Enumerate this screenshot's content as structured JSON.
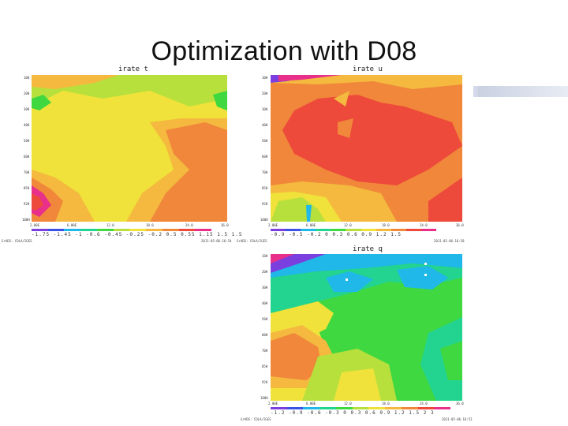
{
  "slide": {
    "title": "Optimization with D08"
  },
  "panels": [
    {
      "id": "t",
      "title": "irate t",
      "y_ticks": [
        "10H",
        "20H",
        "30H",
        "40H",
        "50H",
        "60H",
        "70H",
        "85H",
        "92H",
        "100H"
      ],
      "x_ticks": [
        "2.00E",
        "6.00E",
        "12.0",
        "18.0",
        "24.0",
        "36.0"
      ],
      "colorbar_labels": "-1.75 -1.45 -1 -0.6 -0.45 -0.25 -0.2 0.5 0.55 1.15 1.5 1.5",
      "footer_left": "GrADS: COLA/IGES",
      "footer_right": "2011-05-06-16:54",
      "colors": [
        "#7b3fe0",
        "#3a52e6",
        "#1fb8e8",
        "#22d48f",
        "#40d840",
        "#b8e03c",
        "#f0e23a",
        "#f4b93e",
        "#f0873a",
        "#ee4a3b",
        "#e8308a"
      ]
    },
    {
      "id": "u",
      "title": "irate u",
      "y_ticks": [
        "10H",
        "20H",
        "30H",
        "40H",
        "50H",
        "60H",
        "70H",
        "85H",
        "92H",
        "100H"
      ],
      "x_ticks": [
        "2.00E",
        "6.00E",
        "12.0",
        "18.0",
        "24.0",
        "36.0"
      ],
      "colorbar_labels": "-0.9 -0.5 -0.2 0 0.3 0.6 0.9 1.2 1.5",
      "footer_left": "GrADS: COLA/IGES",
      "footer_right": "2011-05-06-16:58",
      "colors": [
        "#7b3fe0",
        "#3a52e6",
        "#1fb8e8",
        "#22d48f",
        "#40d840",
        "#b8e03c",
        "#f0e23a",
        "#f4b93e",
        "#f0873a",
        "#ee4a3b",
        "#e8308a"
      ]
    },
    {
      "id": "q",
      "title": "irate q",
      "y_ticks": [
        "10H",
        "20H",
        "30H",
        "40H",
        "50H",
        "60H",
        "70H",
        "85H",
        "92H",
        "100H"
      ],
      "x_ticks": [
        "2.00E",
        "6.00E",
        "12.0",
        "18.0",
        "24.0",
        "36.0"
      ],
      "colorbar_labels": "-1.2 -0.9 -0.6 -0.3 0 0.3 0.6 0.9 1.2 1.5 2 3",
      "footer_left": "GrADS: COLA/IGES",
      "footer_right": "2011-05-06-16:52",
      "colors": [
        "#7b3fe0",
        "#3a52e6",
        "#1fb8e8",
        "#22d48f",
        "#40d840",
        "#b8e03c",
        "#f0e23a",
        "#f4b93e",
        "#f0873a",
        "#ee4a3b",
        "#e8308a"
      ]
    }
  ]
}
